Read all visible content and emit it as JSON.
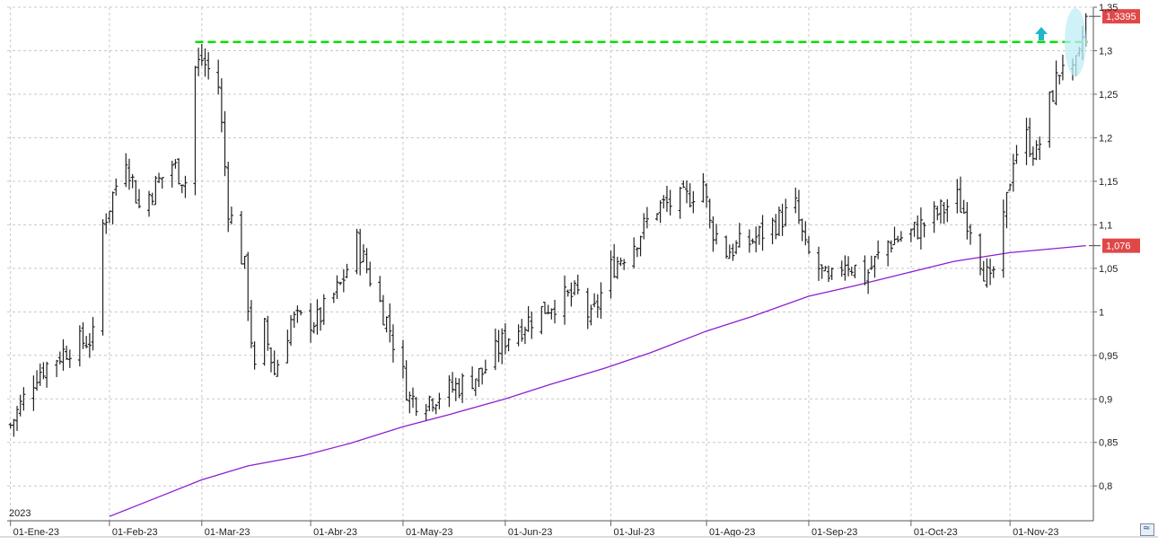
{
  "chart_data": {
    "type": "ohlc",
    "year_label": "2023",
    "x_tick_labels": [
      "01-Ene-23",
      "01-Feb-23",
      "01-Mar-23",
      "01-Abr-23",
      "01-May-23",
      "01-Jun-23",
      "01-Jul-23",
      "01-Ago-23",
      "01-Sep-23",
      "01-Oct-23",
      "01-Nov-23"
    ],
    "y_tick_labels": [
      "0,8",
      "0,85",
      "0,9",
      "0,95",
      "1",
      "1,05",
      "1,1",
      "1,15",
      "1,2",
      "1,25",
      "1,3",
      "1,35"
    ],
    "y_tick_values": [
      0.8,
      0.85,
      0.9,
      0.95,
      1.0,
      1.05,
      1.1,
      1.15,
      1.2,
      1.25,
      1.3,
      1.35
    ],
    "ylim": [
      0.76,
      1.35
    ],
    "grid": true,
    "last_price": 1.3395,
    "last_price_label": "1,3395",
    "moving_average_last": 1.076,
    "moving_average_label": "1,076",
    "resistance_level": 1.31,
    "price_anchors": [
      [
        "2023-01-02",
        0.87
      ],
      [
        "2023-01-10",
        0.93
      ],
      [
        "2023-01-20",
        0.96
      ],
      [
        "2023-01-27",
        0.97
      ],
      [
        "2023-01-30",
        1.1
      ],
      [
        "2023-02-06",
        1.18
      ],
      [
        "2023-02-10",
        1.12
      ],
      [
        "2023-02-20",
        1.17
      ],
      [
        "2023-02-24",
        1.15
      ],
      [
        "2023-02-27",
        1.28
      ],
      [
        "2023-03-01",
        1.29
      ],
      [
        "2023-03-06",
        1.26
      ],
      [
        "2023-03-09",
        1.12
      ],
      [
        "2023-03-14",
        1.05
      ],
      [
        "2023-03-17",
        0.93
      ],
      [
        "2023-03-20",
        0.98
      ],
      [
        "2023-03-23",
        0.93
      ],
      [
        "2023-03-28",
        0.99
      ],
      [
        "2023-04-05",
        0.99
      ],
      [
        "2023-04-12",
        1.03
      ],
      [
        "2023-04-17",
        1.08
      ],
      [
        "2023-04-21",
        1.04
      ],
      [
        "2023-04-27",
        0.98
      ],
      [
        "2023-05-03",
        0.9
      ],
      [
        "2023-05-08",
        0.9
      ],
      [
        "2023-05-15",
        0.91
      ],
      [
        "2023-05-25",
        0.93
      ],
      [
        "2023-06-01",
        0.97
      ],
      [
        "2023-06-08",
        0.99
      ],
      [
        "2023-06-15",
        1.01
      ],
      [
        "2023-06-23",
        1.02
      ],
      [
        "2023-06-27",
        0.99
      ],
      [
        "2023-07-03",
        1.05
      ],
      [
        "2023-07-10",
        1.08
      ],
      [
        "2023-07-17",
        1.12
      ],
      [
        "2023-07-26",
        1.13
      ],
      [
        "2023-07-31",
        1.15
      ],
      [
        "2023-08-02",
        1.1
      ],
      [
        "2023-08-07",
        1.07
      ],
      [
        "2023-08-14",
        1.08
      ],
      [
        "2023-08-21",
        1.1
      ],
      [
        "2023-08-28",
        1.12
      ],
      [
        "2023-08-31",
        1.07
      ],
      [
        "2023-09-04",
        1.05
      ],
      [
        "2023-09-07",
        1.03
      ],
      [
        "2023-09-12",
        1.06
      ],
      [
        "2023-09-18",
        1.04
      ],
      [
        "2023-09-25",
        1.08
      ],
      [
        "2023-10-02",
        1.09
      ],
      [
        "2023-10-09",
        1.11
      ],
      [
        "2023-10-16",
        1.13
      ],
      [
        "2023-10-20",
        1.1
      ],
      [
        "2023-10-24",
        1.05
      ],
      [
        "2023-10-26",
        1.03
      ],
      [
        "2023-10-30",
        1.1
      ],
      [
        "2023-11-02",
        1.18
      ],
      [
        "2023-11-06",
        1.2
      ],
      [
        "2023-11-09",
        1.18
      ],
      [
        "2023-11-13",
        1.24
      ],
      [
        "2023-11-17",
        1.29
      ],
      [
        "2023-11-20",
        1.27
      ],
      [
        "2023-11-22",
        1.29
      ],
      [
        "2023-11-24",
        1.3395
      ]
    ],
    "ma_anchors": [
      [
        "2023-02-01",
        0.765
      ],
      [
        "2023-02-15",
        0.786
      ],
      [
        "2023-03-01",
        0.807
      ],
      [
        "2023-03-15",
        0.823
      ],
      [
        "2023-04-01",
        0.835
      ],
      [
        "2023-04-15",
        0.849
      ],
      [
        "2023-05-01",
        0.868
      ],
      [
        "2023-05-15",
        0.882
      ],
      [
        "2023-06-01",
        0.9
      ],
      [
        "2023-06-15",
        0.917
      ],
      [
        "2023-07-01",
        0.935
      ],
      [
        "2023-07-15",
        0.953
      ],
      [
        "2023-08-01",
        0.978
      ],
      [
        "2023-08-15",
        0.995
      ],
      [
        "2023-09-01",
        1.018
      ],
      [
        "2023-09-15",
        1.03
      ],
      [
        "2023-10-01",
        1.045
      ],
      [
        "2023-10-15",
        1.058
      ],
      [
        "2023-11-01",
        1.068
      ],
      [
        "2023-11-24",
        1.076
      ]
    ]
  },
  "colors": {
    "bars": "#222222",
    "moving_average": "#8b1fd1",
    "resistance_line": "#00e000",
    "price_tag": "#e04848",
    "highlight": "#bfeef5",
    "arrow": "#20b8c8",
    "grid": "#c8c8c8"
  },
  "icons": {
    "breakout_arrow": "up-arrow-icon",
    "corner_button": "chart-settings-icon"
  }
}
